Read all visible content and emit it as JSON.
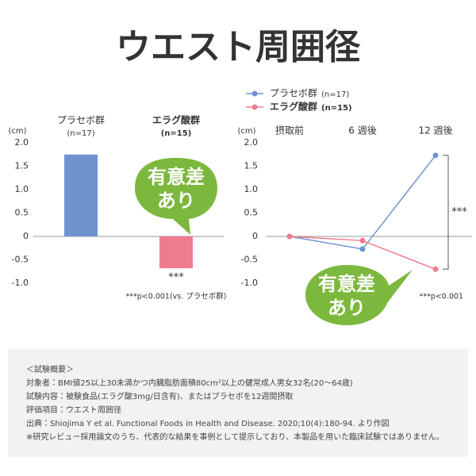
{
  "title": "ウエスト周囲径",
  "chart_data": [
    {
      "type": "bar",
      "y_label": "(cm)",
      "categories": [
        "プラセボ群",
        "エラグ酸群"
      ],
      "n_labels": [
        "(n=17)",
        "(n=15)"
      ],
      "values": [
        1.75,
        -0.68
      ],
      "colors": [
        "#6f93cf",
        "#ef7b8f"
      ],
      "label_colors": [
        "#333333",
        "#6aaa2e"
      ],
      "ylim": [
        -1,
        2
      ],
      "yticks": [
        {
          "value": 2,
          "label": "2.0"
        },
        {
          "value": 1.5,
          "label": "1.5"
        },
        {
          "value": 1,
          "label": "1.0"
        },
        {
          "value": 0.5,
          "label": "0.5"
        },
        0,
        -0.5,
        {
          "value": -1,
          "label": "-1.0"
        }
      ],
      "significance": "***",
      "footnote": "***p<0.001(vs. プラセボ群)",
      "badge": [
        "有意差",
        "あり"
      ]
    },
    {
      "type": "line",
      "y_label": "(cm)",
      "categories": [
        "摂取前",
        "6 週後",
        "12 週後"
      ],
      "series": [
        {
          "name": "プラセボ群",
          "n_label": "(n=17)",
          "color": "#6f93cf",
          "values": [
            0,
            -0.27,
            1.73
          ]
        },
        {
          "name": "エラグ酸群",
          "n_label": "(n=15)",
          "color": "#ef7b8f",
          "values": [
            0,
            -0.09,
            -0.7
          ]
        }
      ],
      "ylim": [
        -1,
        2
      ],
      "yticks": [
        {
          "value": 2,
          "label": "2.0"
        },
        {
          "value": 1.5,
          "label": "1.5"
        },
        {
          "value": 1,
          "label": "1.0"
        },
        {
          "value": 0.5,
          "label": "0.5"
        },
        0,
        -0.5,
        {
          "value": -1,
          "label": "-1.0"
        }
      ],
      "significance": "***",
      "footnote": "***p<0.001",
      "badge": [
        "有意差",
        "あり"
      ]
    }
  ],
  "notes": [
    "＜試験概要＞",
    "対象者：BMI値25以上30未満かつ内臓脂肪面積80cm²以上の健常成人男女32名(20～64歳)",
    "試験内容：被験食品(エラグ酸3mg/日含有)、またはプラセボを12週間摂取",
    "評価項目：ウエスト周囲径",
    "出典：Shiojima Y et al. Functional Foods in Health and Disease. 2020;10(4):180-94. より作図",
    "※研究レビュー採用論文のうち、代表的な結果を事例として提示しており、本製品を用いた臨床試験ではありません。"
  ]
}
